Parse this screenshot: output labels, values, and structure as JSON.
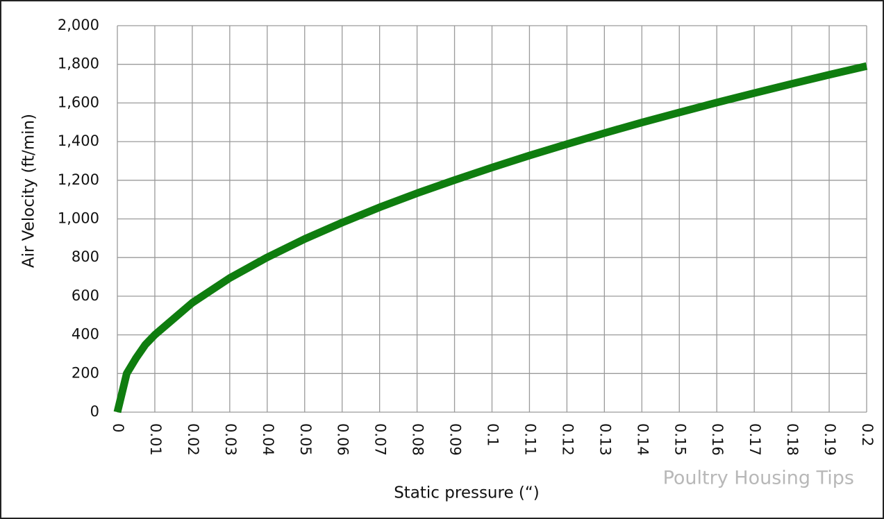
{
  "chart_data": {
    "type": "line",
    "x_label": "Static pressure (“)",
    "y_label": "Air Velocity (ft/min)",
    "annotation": "Poultry Housing Tips",
    "x": [
      0,
      0.0025,
      0.005,
      0.0075,
      0.01,
      0.02,
      0.03,
      0.04,
      0.05,
      0.06,
      0.07,
      0.08,
      0.09,
      0.1,
      0.11,
      0.12,
      0.13,
      0.14,
      0.15,
      0.16,
      0.17,
      0.18,
      0.19,
      0.2
    ],
    "values": [
      0,
      200,
      280,
      350,
      400,
      566,
      694,
      801,
      896,
      981,
      1060,
      1133,
      1201,
      1266,
      1328,
      1387,
      1444,
      1499,
      1551,
      1602,
      1651,
      1699,
      1746,
      1791
    ],
    "color": "#0f7d0f",
    "xlim": [
      0,
      0.2
    ],
    "xticks": [
      0,
      0.01,
      0.02,
      0.03,
      0.04,
      0.05,
      0.06,
      0.07,
      0.08,
      0.09,
      0.1,
      0.11,
      0.12,
      0.13,
      0.14,
      0.15,
      0.16,
      0.17,
      0.18,
      0.19,
      0.2
    ],
    "ylim": [
      0,
      2000
    ],
    "yticks": [
      0,
      200,
      400,
      600,
      800,
      {
        "value": 1000,
        "label": "1,000"
      },
      {
        "value": 1200,
        "label": "1,200"
      },
      {
        "value": 1400,
        "label": "1,400"
      },
      {
        "value": 1600,
        "label": "1,600"
      },
      {
        "value": 1800,
        "label": "1,800"
      },
      {
        "value": 2000,
        "label": "2,000"
      }
    ],
    "grid": true
  }
}
